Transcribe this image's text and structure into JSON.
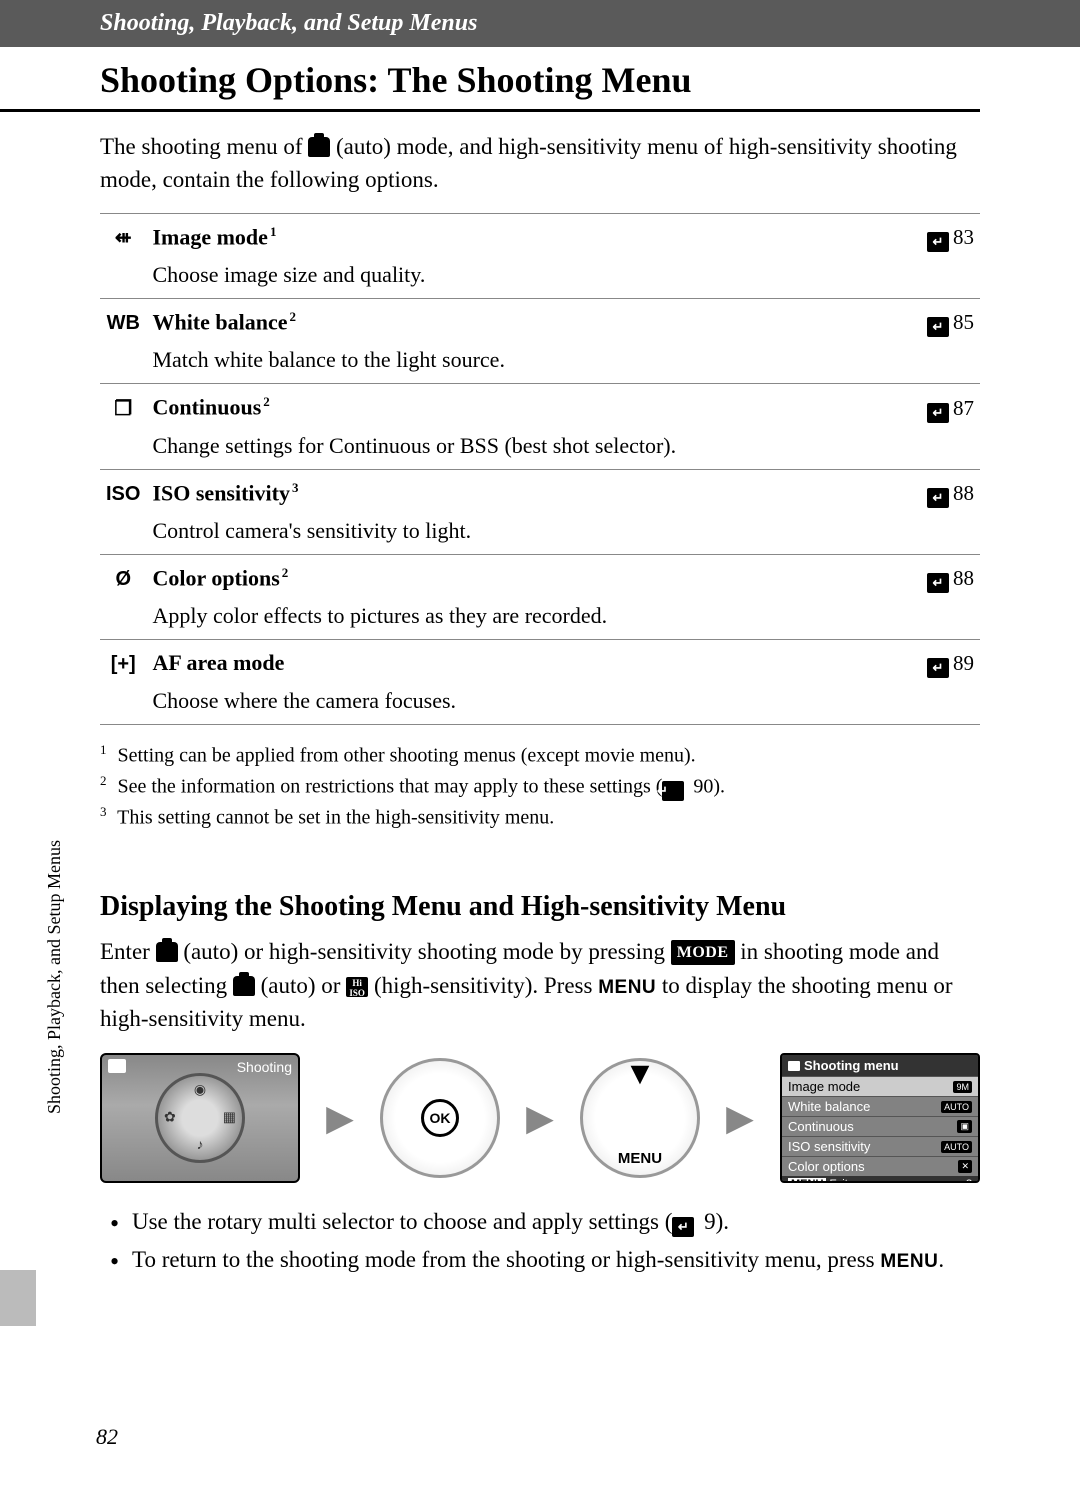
{
  "header": {
    "breadcrumb": "Shooting, Playback, and Setup Menus",
    "title": "Shooting Options: The Shooting Menu"
  },
  "intro": {
    "before_icon": "The shooting menu of ",
    "after_icon": " (auto) mode, and high-sensitivity menu of high-sensitivity shooting mode, contain the following options."
  },
  "options": [
    {
      "icon_glyph": "⇺",
      "label": "Image mode",
      "sup": "1",
      "page": "83",
      "desc": "Choose image size and quality."
    },
    {
      "icon_glyph": "WB",
      "label": "White balance",
      "sup": "2",
      "page": "85",
      "desc": "Match white balance to the light source."
    },
    {
      "icon_glyph": "❐",
      "label": "Continuous",
      "sup": "2",
      "page": "87",
      "desc": "Change settings for Continuous or BSS (best shot selector)."
    },
    {
      "icon_glyph": "ISO",
      "label": "ISO sensitivity",
      "sup": "3",
      "page": "88",
      "desc": "Control camera's sensitivity to light."
    },
    {
      "icon_glyph": "Ø",
      "label": "Color options",
      "sup": "2",
      "page": "88",
      "desc": "Apply color effects to pictures as they are recorded."
    },
    {
      "icon_glyph": "[+]",
      "label": "AF area mode",
      "sup": "",
      "page": "89",
      "desc": "Choose where the camera focuses."
    }
  ],
  "footnotes": [
    {
      "num": "1",
      "text": "Setting can be applied from other shooting menus (except movie menu)."
    },
    {
      "num": "2",
      "text_before": "See the information on restrictions that may apply to these settings (",
      "ref": "90",
      "text_after": ")."
    },
    {
      "num": "3",
      "text": "This setting cannot be set in the high-sensitivity menu."
    }
  ],
  "subsection": {
    "heading": "Displaying the Shooting Menu and High-sensitivity Menu",
    "para_parts": {
      "p1": "Enter ",
      "p2": " (auto) or high-sensitivity shooting mode by pressing ",
      "mode": "MODE",
      "p3": " in shooting mode and then selecting ",
      "p4": " (auto) or ",
      "hi_iso": "Hi\nISO",
      "p5": " (high-sensitivity). Press ",
      "menu": "MENU",
      "p6": " to display the shooting menu or high-sensitivity menu."
    }
  },
  "diagram": {
    "box1_title": "Shooting",
    "ok_label": "OK",
    "menu_label": "MENU",
    "menu_box": {
      "header": "Shooting menu",
      "items": [
        {
          "label": "Image mode",
          "badge": "9M",
          "selected": true
        },
        {
          "label": "White balance",
          "badge": "AUTO",
          "selected": false
        },
        {
          "label": "Continuous",
          "badge": "▣",
          "selected": false
        },
        {
          "label": "ISO sensitivity",
          "badge": "AUTO",
          "selected": false
        },
        {
          "label": "Color options",
          "badge": "✕",
          "selected": false
        }
      ],
      "footer_left": "MENU",
      "footer_right": "Exit",
      "help": "?"
    }
  },
  "bullets": [
    {
      "before": "Use the rotary multi selector to choose and apply settings (",
      "ref": "9",
      "after": ")."
    },
    {
      "before": "To return to the shooting mode from the shooting or high-sensitivity menu, press ",
      "menu": "MENU",
      "after": "."
    }
  ],
  "side_text": "Shooting, Playback, and Setup Menus",
  "page_number": "82",
  "colors": {
    "header_bg": "#5a5a5a",
    "ref_icon_bg": "#000000",
    "border": "#888888"
  }
}
